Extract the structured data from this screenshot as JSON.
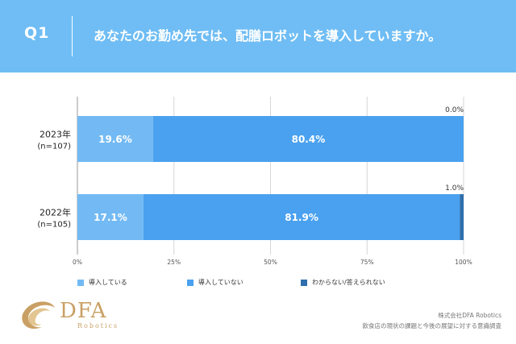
{
  "header": {
    "q_label": "Q1",
    "question": "あなたのお勤め先では、配膳ロボットを導入していますか。"
  },
  "colors": {
    "header_bg": "#6fbdf4",
    "adopted": "#73baf4",
    "not_adopted": "#4aa1ef",
    "unknown": "#2e6fad",
    "axis": "#999999"
  },
  "chart_data": {
    "type": "bar",
    "orientation": "horizontal",
    "stacked": true,
    "categories": [
      {
        "year": "2023年",
        "n": "(n=107)"
      },
      {
        "year": "2022年",
        "n": "(n=105)"
      }
    ],
    "series": [
      {
        "name": "導入している",
        "values": [
          19.6,
          17.1
        ],
        "labels": [
          "19.6%",
          "17.1%"
        ]
      },
      {
        "name": "導入していない",
        "values": [
          80.4,
          81.9
        ],
        "labels": [
          "80.4%",
          "81.9%"
        ]
      },
      {
        "name": "わからない/答えられない",
        "values": [
          0.0,
          1.0
        ],
        "labels": [
          "0.0%",
          "1.0%"
        ]
      }
    ],
    "xlim": [
      0,
      100
    ],
    "xticks": [
      "0%",
      "25%",
      "50%",
      "75%",
      "100%"
    ],
    "legend_position": "bottom"
  },
  "logo": {
    "name": "DFA",
    "sub": "Robotics"
  },
  "footer": {
    "company": "株式会社DFA Robotics",
    "survey": "飲食店の現状の課題と今後の展望に対する意識調査"
  }
}
